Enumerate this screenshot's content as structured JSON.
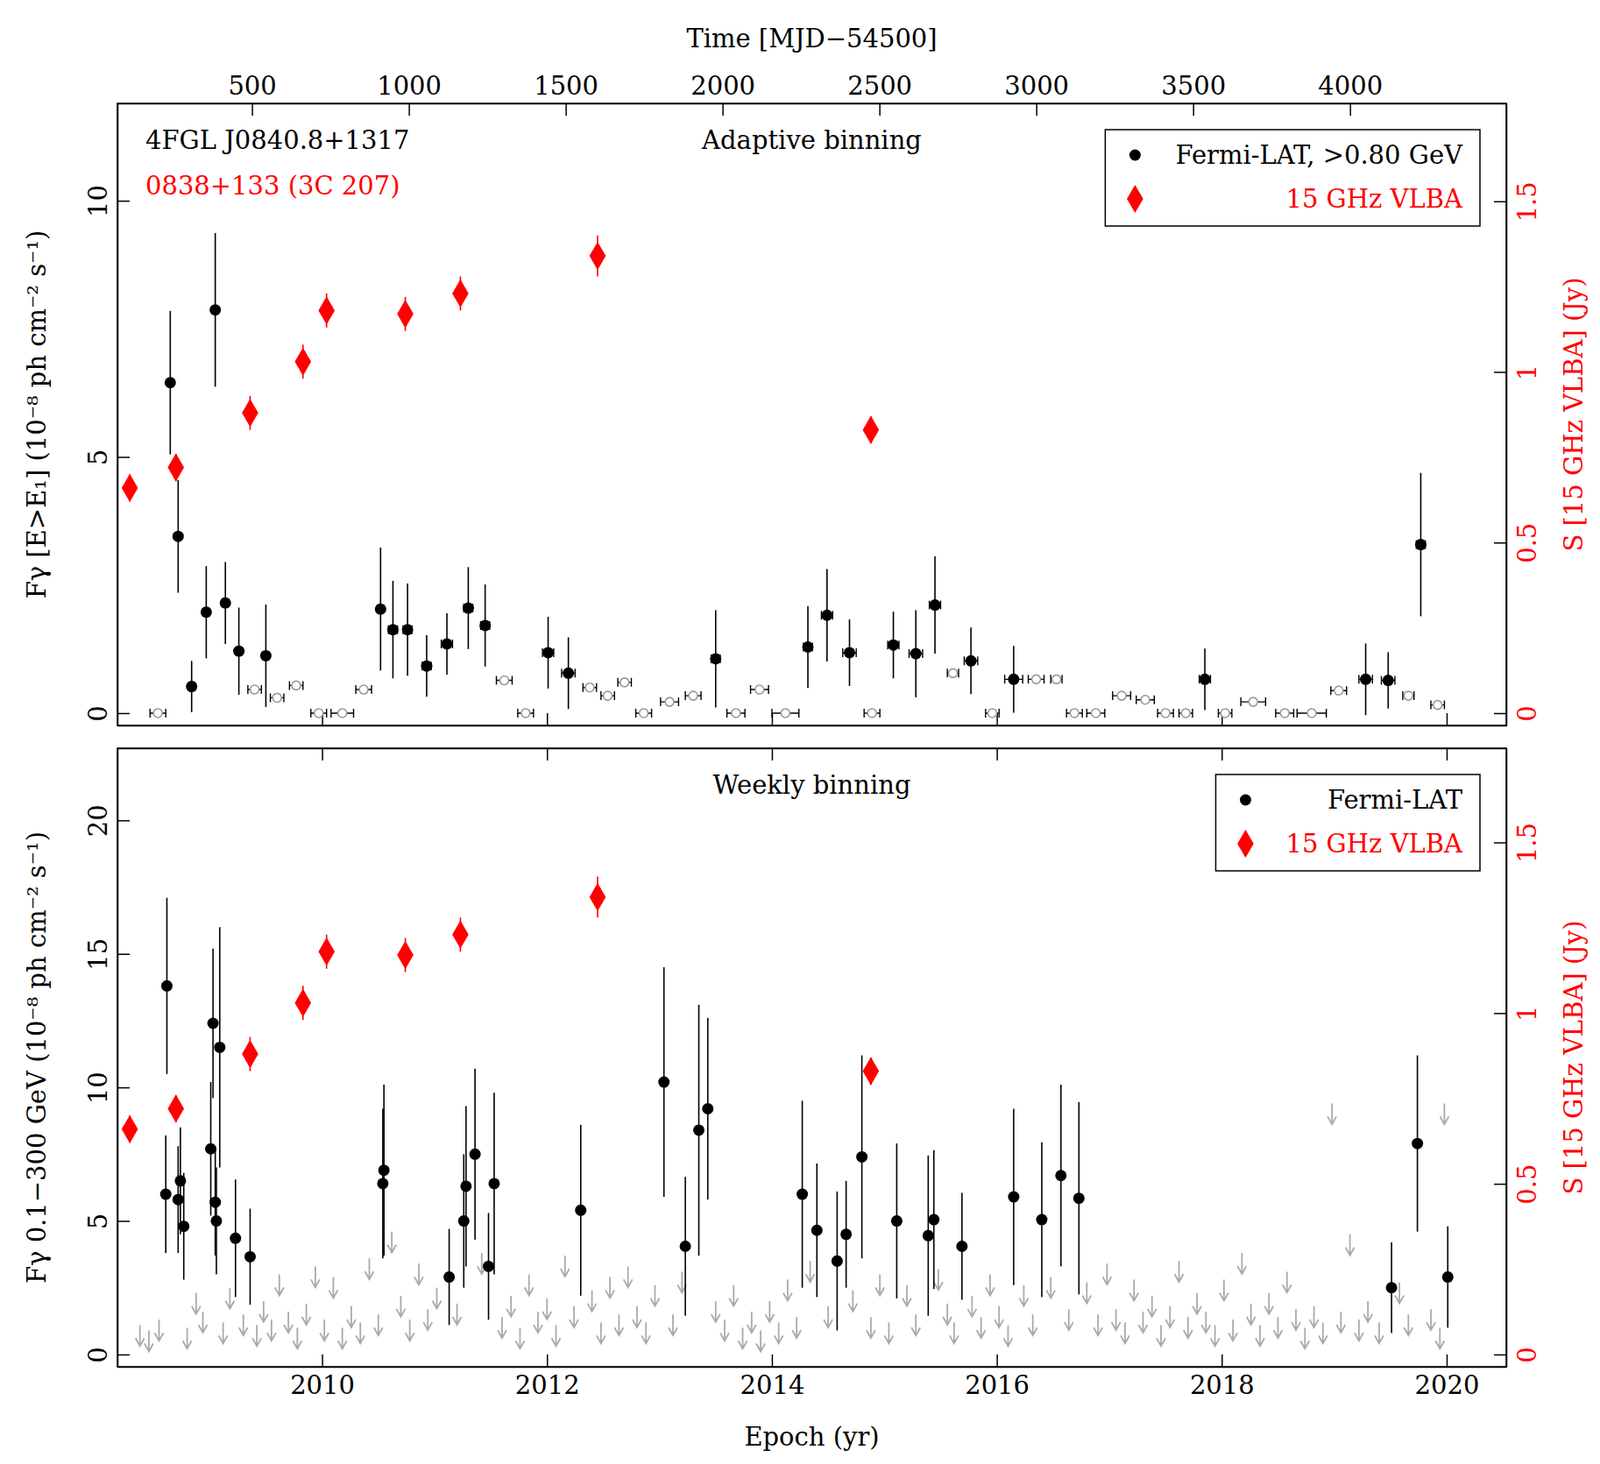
{
  "chart_data": [
    {
      "type": "scatter",
      "title": "Adaptive binning",
      "annotations": [
        {
          "text": "4FGL J0840.8+1317",
          "color": "#000000"
        },
        {
          "text": "0838+133 (3C 207)",
          "color": "#ff0000"
        }
      ],
      "x2label": "Time [MJD−54500]",
      "ylabel": "Fγ [E>E₁] (10⁻⁸ ph cm⁻² s⁻¹)",
      "y2label": "S [15 GHz VLBA] (Jy)",
      "xlim": [
        2008.18,
        2020.53
      ],
      "xticks": [
        2010,
        2012,
        2014,
        2016,
        2018,
        2020
      ],
      "x2lim": [
        71,
        4498
      ],
      "x2ticks": [
        500,
        1000,
        1500,
        2000,
        2500,
        3000,
        3500,
        4000
      ],
      "ylim": [
        -0.24,
        11.9
      ],
      "yticks": [
        0,
        5,
        10
      ],
      "y2lim": [
        -0.036,
        1.787
      ],
      "y2ticks": [
        0,
        0.5,
        1,
        1.5
      ],
      "legend": "upper right",
      "series": [
        {
          "color": "#999999",
          "marker": "open-circle",
          "x": [
            2008.54,
            2009.4,
            2009.6,
            2009.77,
            2009.97,
            2010.18,
            2010.37,
            2011.62,
            2011.81,
            2012.38,
            2012.54,
            2012.69,
            2012.86,
            2013.09,
            2013.3,
            2013.68,
            2013.89,
            2014.12,
            2014.89,
            2015.61,
            2015.96,
            2016.35,
            2016.53,
            2016.69,
            2016.88,
            2017.11,
            2017.32,
            2017.5,
            2017.68,
            2018.03,
            2018.28,
            2018.56,
            2018.8,
            2019.04,
            2019.66,
            2019.92
          ],
          "values": [
            0,
            0.46,
            0.3,
            0.54,
            0,
            0,
            0.46,
            0.64,
            0,
            0.5,
            0.34,
            0.6,
            0,
            0.22,
            0.34,
            0,
            0.46,
            0,
            0,
            0.78,
            0,
            0.66,
            0.66,
            0,
            0,
            0.34,
            0.26,
            0,
            0,
            0,
            0.22,
            0,
            0,
            0.44,
            0.34,
            0.16
          ],
          "x_errors": [
            0.07,
            0.06,
            0.06,
            0.06,
            0.07,
            0.1,
            0.07,
            0.07,
            0.07,
            0.06,
            0.06,
            0.06,
            0.07,
            0.08,
            0.07,
            0.08,
            0.08,
            0.12,
            0.07,
            0.05,
            0.06,
            0.07,
            0.05,
            0.07,
            0.08,
            0.08,
            0.08,
            0.07,
            0.06,
            0.06,
            0.11,
            0.08,
            0.13,
            0.07,
            0.05,
            0.06
          ]
        },
        {
          "name": "Fermi-LAT, >0.80 GeV",
          "color": "#000000",
          "marker": "circle",
          "x": [
            2008.65,
            2008.72,
            2008.84,
            2008.97,
            2009.05,
            2009.14,
            2009.26,
            2009.5,
            2010.52,
            2010.63,
            2010.76,
            2010.93,
            2011.11,
            2011.3,
            2011.45,
            2012.01,
            2012.19,
            2013.5,
            2014.32,
            2014.49,
            2014.69,
            2015.08,
            2015.28,
            2015.45,
            2015.77,
            2016.15,
            2017.85,
            2019.28,
            2019.48,
            2019.77
          ],
          "values": [
            6.45,
            3.45,
            0.52,
            1.97,
            7.87,
            2.15,
            1.21,
            1.12,
            2.03,
            1.63,
            1.63,
            0.92,
            1.35,
            2.05,
            1.71,
            1.18,
            0.78,
            1.06,
            1.29,
            1.91,
            1.18,
            1.33,
            1.16,
            2.11,
            1.02,
            0.66,
            0.66,
            0.66,
            0.64,
            3.29
          ],
          "errors": [
            1.4,
            1.1,
            0.5,
            0.9,
            1.5,
            0.8,
            0.85,
            1.0,
            1.2,
            0.95,
            0.9,
            0.6,
            0.6,
            0.8,
            0.8,
            0.7,
            0.7,
            0.95,
            0.8,
            0.9,
            0.65,
            0.65,
            0.85,
            0.95,
            0.65,
            0.65,
            0.6,
            0.7,
            0.55,
            1.4
          ],
          "x_errors": [
            0.02,
            0.02,
            0.03,
            0.03,
            0.02,
            0.03,
            0.03,
            0.03,
            0.03,
            0.04,
            0.04,
            0.04,
            0.05,
            0.04,
            0.04,
            0.05,
            0.06,
            0.04,
            0.04,
            0.05,
            0.06,
            0.05,
            0.06,
            0.05,
            0.06,
            0.08,
            0.05,
            0.06,
            0.06,
            0.04
          ]
        },
        {
          "name": "15 GHz VLBA",
          "color": "#ff0000",
          "marker": "diamond",
          "axis": "y2",
          "x": [
            2008.29,
            2008.7,
            2009.36,
            2009.83,
            2010.04,
            2010.74,
            2011.23,
            2012.45,
            2014.88
          ],
          "values": [
            0.66,
            0.72,
            0.88,
            1.03,
            1.18,
            1.17,
            1.23,
            1.34,
            0.83
          ],
          "errors": [
            0.04,
            0.04,
            0.05,
            0.05,
            0.05,
            0.05,
            0.05,
            0.06,
            0.04
          ]
        }
      ]
    },
    {
      "type": "scatter",
      "title": "Weekly binning",
      "xlabel": "Epoch (yr)",
      "ylabel": "Fγ 0.1−300 GeV (10⁻⁸ ph cm⁻² s⁻¹)",
      "y2label": "S [15 GHz VLBA] (Jy)",
      "xlim": [
        2008.18,
        2020.53
      ],
      "xticks": [
        2010,
        2012,
        2014,
        2016,
        2018,
        2020
      ],
      "ylim": [
        -0.46,
        22.7
      ],
      "yticks": [
        0,
        5,
        10,
        15,
        20
      ],
      "y2lim": [
        -0.036,
        1.776
      ],
      "y2ticks": [
        0,
        0.5,
        1,
        1.5
      ],
      "legend": "upper right",
      "series": [
        {
          "color": "#aaaaaa",
          "marker": "arrow",
          "x": [
            2008.38,
            2008.46,
            2008.55,
            2008.8,
            2008.88,
            2008.94,
            2009.12,
            2009.18,
            2009.3,
            2009.42,
            2009.48,
            2009.55,
            2009.62,
            2009.7,
            2009.78,
            2009.86,
            2009.94,
            2010.02,
            2010.1,
            2010.18,
            2010.26,
            2010.34,
            2010.42,
            2010.5,
            2010.62,
            2010.7,
            2010.78,
            2010.86,
            2010.94,
            2011.02,
            2011.2,
            2011.42,
            2011.6,
            2011.68,
            2011.76,
            2011.84,
            2011.92,
            2012.0,
            2012.08,
            2012.16,
            2012.24,
            2012.4,
            2012.48,
            2012.56,
            2012.64,
            2012.72,
            2012.8,
            2012.88,
            2012.96,
            2013.12,
            2013.2,
            2013.5,
            2013.58,
            2013.66,
            2013.74,
            2013.82,
            2013.9,
            2013.98,
            2014.06,
            2014.14,
            2014.22,
            2014.34,
            2014.5,
            2014.72,
            2014.88,
            2014.96,
            2015.04,
            2015.2,
            2015.28,
            2015.48,
            2015.56,
            2015.62,
            2015.78,
            2015.86,
            2015.94,
            2016.02,
            2016.1,
            2016.24,
            2016.32,
            2016.48,
            2016.64,
            2016.8,
            2016.9,
            2016.98,
            2017.06,
            2017.14,
            2017.22,
            2017.3,
            2017.38,
            2017.46,
            2017.54,
            2017.62,
            2017.7,
            2017.78,
            2017.86,
            2017.94,
            2018.02,
            2018.1,
            2018.18,
            2018.26,
            2018.34,
            2018.42,
            2018.5,
            2018.58,
            2018.66,
            2018.74,
            2018.82,
            2018.9,
            2018.98,
            2019.06,
            2019.14,
            2019.22,
            2019.3,
            2019.4,
            2019.58,
            2019.66,
            2019.86,
            2019.94,
            2019.98
          ],
          "values": [
            1.1,
            0.9,
            1.3,
            1.0,
            2.3,
            1.6,
            1.2,
            2.5,
            1.5,
            1.1,
            2.0,
            1.3,
            3.0,
            1.6,
            1.0,
            1.9,
            3.3,
            1.3,
            2.9,
            1.0,
            1.8,
            1.2,
            3.6,
            1.5,
            4.6,
            2.2,
            1.3,
            3.4,
            1.7,
            2.5,
            1.9,
            3.8,
            1.4,
            2.2,
            1.0,
            3.0,
            1.6,
            2.1,
            1.1,
            3.7,
            1.8,
            2.4,
            1.2,
            2.9,
            1.5,
            3.3,
            1.8,
            1.2,
            2.6,
            1.5,
            3.1,
            2.0,
            1.3,
            2.6,
            1.0,
            1.6,
            0.9,
            2.0,
            1.2,
            2.8,
            1.4,
            3.5,
            1.8,
            2.4,
            1.4,
            3.0,
            1.2,
            2.6,
            1.5,
            3.2,
            1.9,
            1.2,
            2.2,
            1.4,
            3.0,
            1.8,
            1.1,
            2.6,
            1.5,
            2.9,
            1.7,
            2.7,
            1.5,
            3.4,
            1.7,
            1.2,
            2.8,
            1.6,
            2.2,
            1.1,
            1.8,
            3.5,
            1.4,
            2.3,
            1.6,
            1.1,
            2.8,
            1.3,
            3.8,
            1.9,
            1.1,
            2.3,
            1.4,
            3.1,
            1.7,
            1.0,
            1.8,
            1.2,
            9.4,
            1.6,
            4.5,
            1.3,
            2.0,
            1.2,
            2.7,
            1.5,
            1.7,
            1.0,
            9.4
          ]
        },
        {
          "name": "Fermi-LAT",
          "color": "#000000",
          "marker": "circle",
          "x": [
            2008.61,
            2008.62,
            2008.72,
            2008.74,
            2008.77,
            2009.01,
            2009.03,
            2009.05,
            2009.06,
            2009.09,
            2009.23,
            2009.36,
            2010.54,
            2010.55,
            2011.13,
            2011.26,
            2011.28,
            2011.36,
            2011.48,
            2011.53,
            2012.3,
            2013.04,
            2013.23,
            2013.35,
            2013.43,
            2014.27,
            2014.4,
            2014.58,
            2014.66,
            2014.8,
            2015.11,
            2015.39,
            2015.44,
            2015.69,
            2016.15,
            2016.4,
            2016.57,
            2016.73,
            2019.51,
            2019.74,
            2020.01
          ],
          "values": [
            6.0,
            13.8,
            5.8,
            6.5,
            4.8,
            7.7,
            12.4,
            5.7,
            5.0,
            11.5,
            4.35,
            3.66,
            6.4,
            6.9,
            2.9,
            5.0,
            6.3,
            7.5,
            3.3,
            6.4,
            5.4,
            10.2,
            4.05,
            8.4,
            9.2,
            6.0,
            4.65,
            3.5,
            4.5,
            7.4,
            5.0,
            4.45,
            5.05,
            4.05,
            5.9,
            5.05,
            6.7,
            5.85,
            2.5,
            7.9,
            2.9
          ],
          "errors": [
            2.2,
            3.3,
            2.0,
            2.0,
            2.0,
            2.5,
            2.8,
            2.0,
            2.0,
            4.5,
            2.2,
            1.8,
            2.8,
            3.2,
            1.8,
            2.5,
            3.0,
            3.2,
            2.0,
            3.4,
            3.2,
            4.3,
            2.6,
            4.7,
            3.4,
            3.5,
            2.5,
            2.6,
            2.0,
            3.8,
            2.9,
            3.0,
            2.6,
            2.0,
            3.3,
            2.9,
            3.4,
            3.6,
            1.7,
            3.3,
            1.9
          ]
        },
        {
          "name": "15 GHz VLBA",
          "color": "#ff0000",
          "marker": "diamond",
          "axis": "y2",
          "x": [
            2008.29,
            2008.7,
            2009.36,
            2009.83,
            2010.04,
            2010.74,
            2011.23,
            2012.45,
            2014.88
          ],
          "values": [
            0.66,
            0.72,
            0.88,
            1.03,
            1.18,
            1.17,
            1.23,
            1.34,
            0.83
          ],
          "errors": [
            0.04,
            0.04,
            0.05,
            0.05,
            0.05,
            0.05,
            0.05,
            0.06,
            0.04
          ]
        }
      ]
    }
  ]
}
